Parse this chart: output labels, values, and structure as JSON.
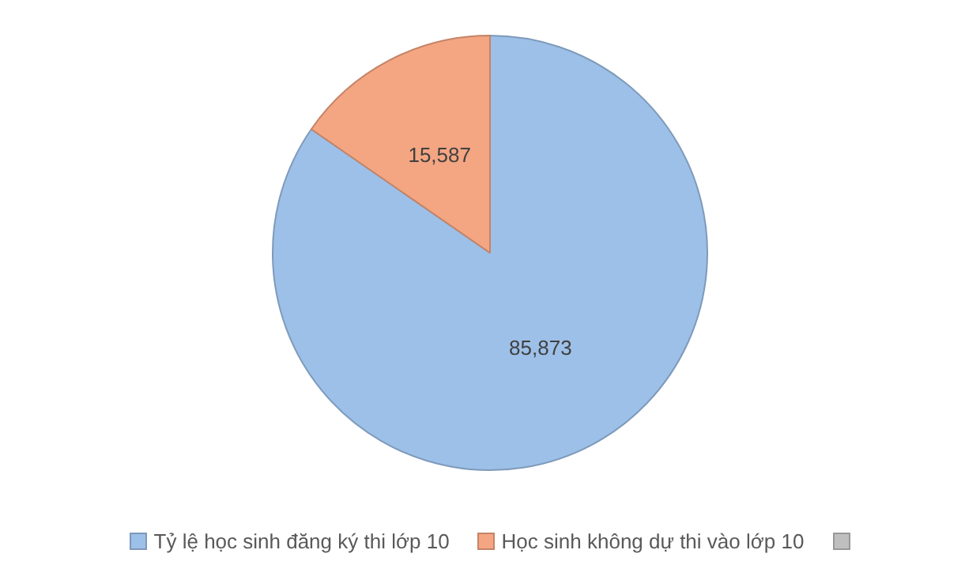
{
  "chart_data": {
    "type": "pie",
    "categories": [
      "Tỷ lệ học sinh đăng ký thi lớp 10",
      "Học sinh không dự thi vào lớp 10"
    ],
    "values": [
      85873,
      15587
    ],
    "colors": [
      "#9dc0e8",
      "#f4a582"
    ],
    "value_labels": [
      "85,873",
      "15,587"
    ],
    "legend": "bottom"
  }
}
